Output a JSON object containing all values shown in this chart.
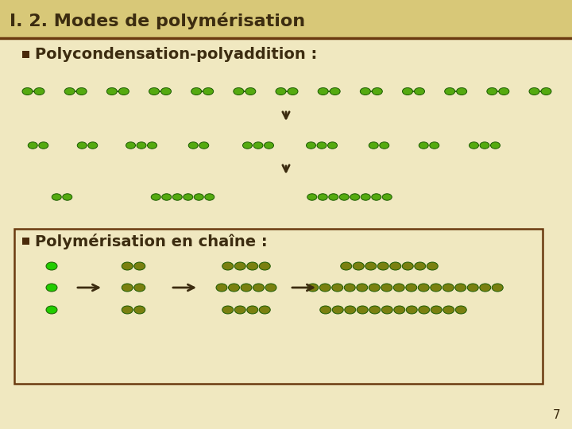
{
  "title": "I. 2. Modes de polymérisation",
  "bg_color": "#f0e8c0",
  "header_bg": "#d8c878",
  "title_color": "#3c2c10",
  "title_fontsize": 16,
  "separator_color": "#6a3a10",
  "bullet_color": "#4a2a0a",
  "bullet1_text": "Polycondensation-polyaddition :",
  "bullet2_text": "Polymérisation en chaîne :",
  "text_color": "#3c2c10",
  "text_fontsize": 14,
  "dot_green": "#55aa10",
  "dot_olive": "#7a8010",
  "dot_bright_green": "#22cc00",
  "page_number": "7",
  "arrow_color": "#3c2c10",
  "edge_color": "#1a5a00"
}
